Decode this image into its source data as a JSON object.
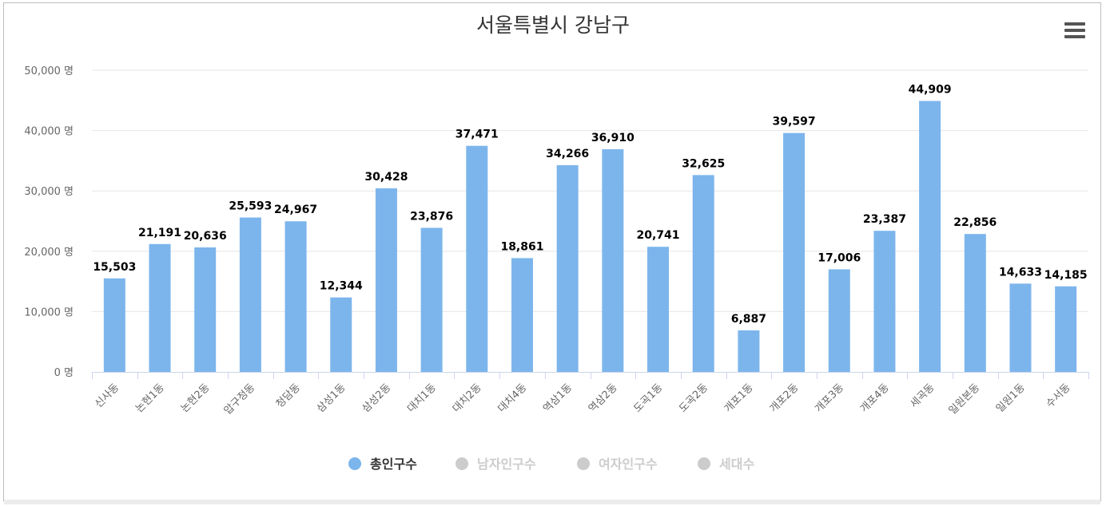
{
  "chart_data": {
    "type": "bar",
    "title": "서울특별시 강남구",
    "y_unit_suffix": " 명",
    "ylim": [
      0,
      50000
    ],
    "yticks": [
      0,
      10000,
      20000,
      30000,
      40000,
      50000
    ],
    "ytick_labels": [
      "0 명",
      "10,000 명",
      "20,000 명",
      "30,000 명",
      "40,000 명",
      "50,000 명"
    ],
    "grid": true,
    "legend_position": "bottom-center",
    "categories": [
      "신사동",
      "논현1동",
      "논현2동",
      "압구정동",
      "청담동",
      "삼성1동",
      "삼성2동",
      "대치1동",
      "대치2동",
      "대치4동",
      "역삼1동",
      "역삼2동",
      "도곡1동",
      "도곡2동",
      "개포1동",
      "개포2동",
      "개포3동",
      "개포4동",
      "세곡동",
      "일원본동",
      "일원1동",
      "수서동"
    ],
    "series": [
      {
        "name": "총인구수",
        "visible": true,
        "color": "#7cb5ec",
        "values": [
          15503,
          21191,
          20636,
          25593,
          24967,
          12344,
          30428,
          23876,
          37471,
          18861,
          34266,
          36910,
          20741,
          32625,
          6887,
          39597,
          17006,
          23387,
          44909,
          22856,
          14633,
          14185
        ],
        "data_labels": [
          "15,503",
          "21,191",
          "20,636",
          "25,593",
          "24,967",
          "12,344",
          "30,428",
          "23,876",
          "37,471",
          "18,861",
          "34,266",
          "36,910",
          "20,741",
          "32,625",
          "6,887",
          "39,597",
          "17,006",
          "23,387",
          "44,909",
          "22,856",
          "14,633",
          "14,185"
        ]
      },
      {
        "name": "남자인구수",
        "visible": false,
        "color": "#cccccc"
      },
      {
        "name": "여자인구수",
        "visible": false,
        "color": "#cccccc"
      },
      {
        "name": "세대수",
        "visible": false,
        "color": "#cccccc"
      }
    ]
  },
  "colors": {
    "bar": "#7cb5ec",
    "legend_active_text": "#333333",
    "legend_inactive": "#cccccc",
    "title": "#333333",
    "axis_text": "#666666",
    "grid": "#e6e6e6"
  },
  "menu_icon": "hamburger-menu-icon"
}
